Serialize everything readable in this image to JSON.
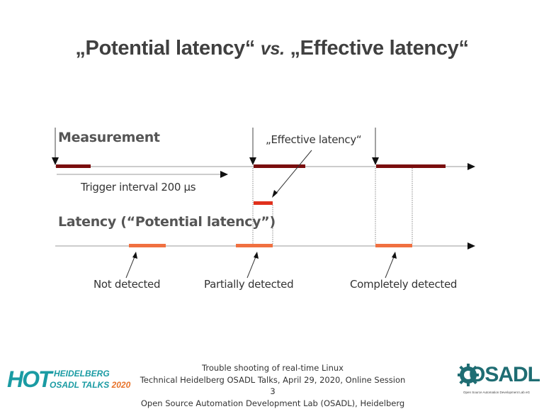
{
  "slide": {
    "title_part1": "„Potential latency“",
    "title_vs": "vs.",
    "title_part2": "„Effective latency“"
  },
  "diagram": {
    "measurement_label": "Measurement",
    "effective_latency_label": "„Effective latency“",
    "trigger_interval_label": "Trigger interval 200 µs",
    "latency_label": "Latency (“Potential latency”)",
    "not_detected_label": "Not detected",
    "partially_detected_label": "Partially detected",
    "completely_detected_label": "Completely detected",
    "colors": {
      "measurement_bar": "#7a0e0e",
      "latency_bar": "#f07040",
      "effective_bar": "#e0301c",
      "axis": "#999999"
    }
  },
  "footer": {
    "line1": "Trouble shooting of real-time Linux",
    "line2": "Technical Heidelberg OSADL Talks, April 29, 2020, Online Session 3",
    "line3": "Open Source Automation Development Lab (OSADL), Heidelberg"
  },
  "logos": {
    "hot_text": "HOT",
    "hot_line1": "HEIDELBERG",
    "hot_line2": "OSADL TALKS",
    "hot_year": "2020",
    "osadl_text": "OSADL",
    "osadl_sub": "Open Source Automation Development Lab eG"
  }
}
